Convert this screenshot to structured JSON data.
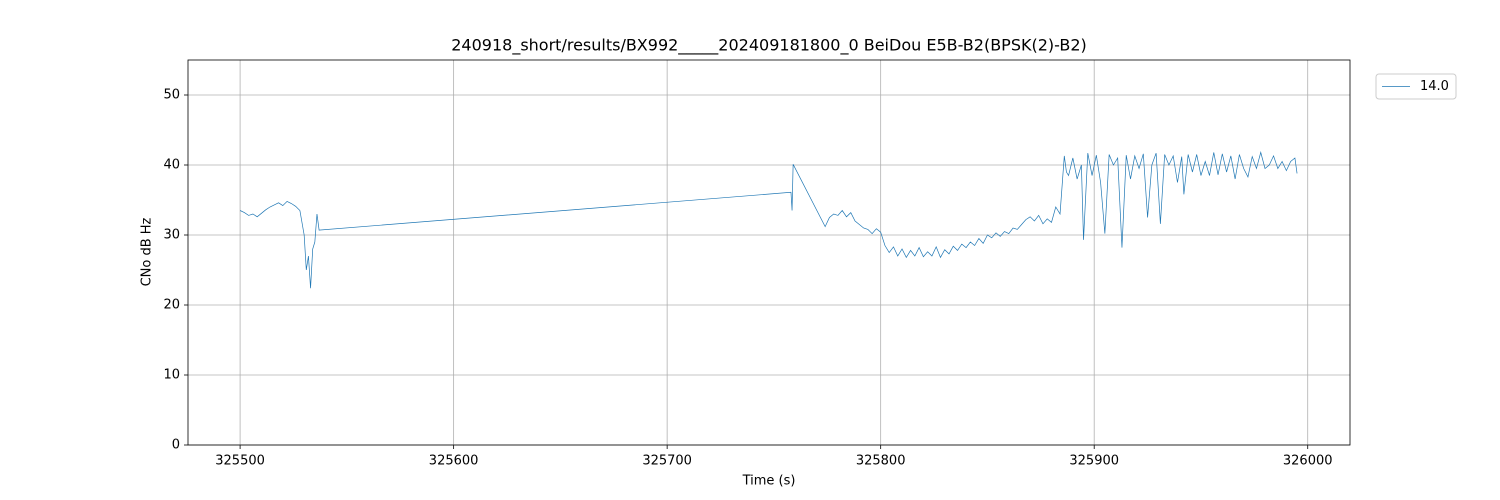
{
  "chart_data": {
    "type": "line",
    "title": "240918_short/results/BX992_____202409181800_0 BeiDou E5B-B2(BPSK(2)-B2)",
    "x_label": "Time (s)",
    "y_label": "CNo dB Hz",
    "xlim": [
      325475.6,
      326019.8
    ],
    "ylim": [
      0,
      55
    ],
    "xticks": [
      325500,
      325600,
      325700,
      325800,
      325900,
      326000
    ],
    "yticks": [
      0,
      10,
      20,
      30,
      40,
      50
    ],
    "grid": true,
    "legend": "upper right outside",
    "x": [
      325500,
      325502,
      325504,
      325506,
      325508,
      325510,
      325512,
      325514,
      325516,
      325518,
      325520,
      325522,
      325524,
      325526,
      325528,
      325530,
      325531,
      325532,
      325533,
      325534,
      325535,
      325536,
      325537,
      325758,
      325758.5,
      325759,
      325774,
      325776,
      325778,
      325780,
      325782,
      325784,
      325786,
      325788,
      325790,
      325792,
      325794,
      325796,
      325798,
      325800,
      325802,
      325804,
      325806,
      325808,
      325810,
      325812,
      325814,
      325816,
      325818,
      325820,
      325822,
      325824,
      325826,
      325828,
      325830,
      325832,
      325834,
      325836,
      325838,
      325840,
      325842,
      325844,
      325846,
      325848,
      325850,
      325852,
      325854,
      325856,
      325858,
      325860,
      325862,
      325864,
      325866,
      325868,
      325870,
      325872,
      325874,
      325876,
      325878,
      325880,
      325882,
      325884,
      325886,
      325887,
      325888,
      325890,
      325892,
      325894,
      325895,
      325897,
      325899,
      325901,
      325903,
      325905,
      325907,
      325909,
      325911,
      325913,
      325915,
      325917,
      325919,
      325921,
      325923,
      325925,
      325927,
      325929,
      325931,
      325933,
      325935,
      325937,
      325939,
      325941,
      325942,
      325944,
      325946,
      325948,
      325950,
      325952,
      325954,
      325956,
      325958,
      325960,
      325962,
      325964,
      325966,
      325968,
      325970,
      325972,
      325974,
      325976,
      325978,
      325980,
      325982,
      325984,
      325986,
      325988,
      325990,
      325992,
      325994,
      325995
    ],
    "series": [
      {
        "name": "14.0",
        "color": "#1f77b4",
        "values": [
          33.5,
          33.2,
          32.8,
          33,
          32.6,
          33.1,
          33.6,
          34,
          34.3,
          34.6,
          34.2,
          34.8,
          34.5,
          34.1,
          33.5,
          30,
          25,
          27,
          22.4,
          28,
          29,
          33,
          30.7,
          36.1,
          33.5,
          40.1,
          31.2,
          32.5,
          33,
          32.8,
          33.5,
          32.6,
          33.2,
          32,
          31.5,
          31,
          30.8,
          30.2,
          30.9,
          30.4,
          28.5,
          27.5,
          28.3,
          27,
          28,
          26.8,
          27.8,
          27,
          28.2,
          26.9,
          27.6,
          27,
          28.3,
          26.8,
          27.9,
          27.3,
          28.4,
          27.8,
          28.7,
          28.2,
          29,
          28.5,
          29.5,
          28.8,
          30,
          29.6,
          30.3,
          29.8,
          30.5,
          30.2,
          31,
          30.8,
          31.5,
          32.2,
          32.6,
          32,
          32.8,
          31.6,
          32.3,
          31.8,
          34,
          33,
          41.3,
          39,
          38.5,
          41,
          38,
          40,
          29.3,
          41.7,
          38.5,
          41.4,
          37.5,
          30.2,
          41.5,
          40,
          41,
          28.2,
          41.4,
          38,
          41.3,
          39.5,
          41.6,
          32.5,
          40,
          41.7,
          31.6,
          41.5,
          40,
          41.3,
          37.5,
          41.2,
          35.8,
          41.5,
          39,
          41.5,
          38.5,
          40.5,
          38.5,
          41.8,
          38.6,
          41.6,
          39,
          41.3,
          38,
          41.5,
          39.5,
          38.3,
          41.2,
          39.5,
          41.8,
          39.5,
          40,
          41.3,
          39.5,
          40.5,
          39.2,
          40.5,
          41,
          38.8
        ]
      }
    ]
  }
}
